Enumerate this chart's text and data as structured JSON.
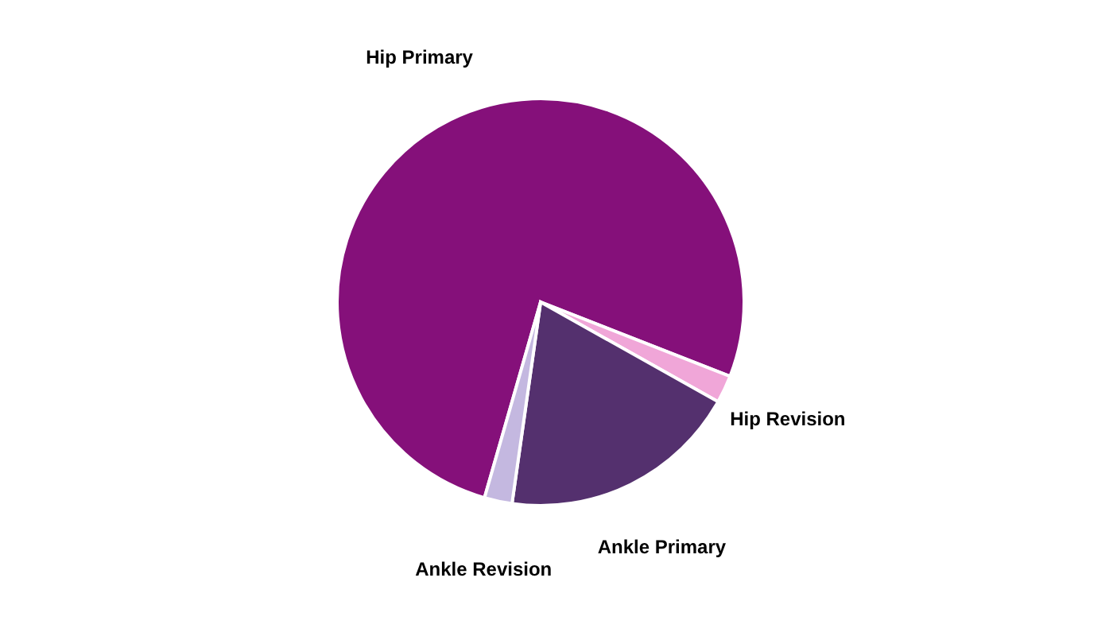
{
  "chart_data": {
    "type": "pie",
    "categories": [
      "Hip Primary",
      "Hip Revision",
      "Ankle Primary",
      "Ankle Revision"
    ],
    "values": [
      76.5,
      2.2,
      19.1,
      2.2
    ],
    "colors": [
      "#85107a",
      "#f0a6d8",
      "#54306e",
      "#c4b8e0"
    ],
    "legend": false
  }
}
